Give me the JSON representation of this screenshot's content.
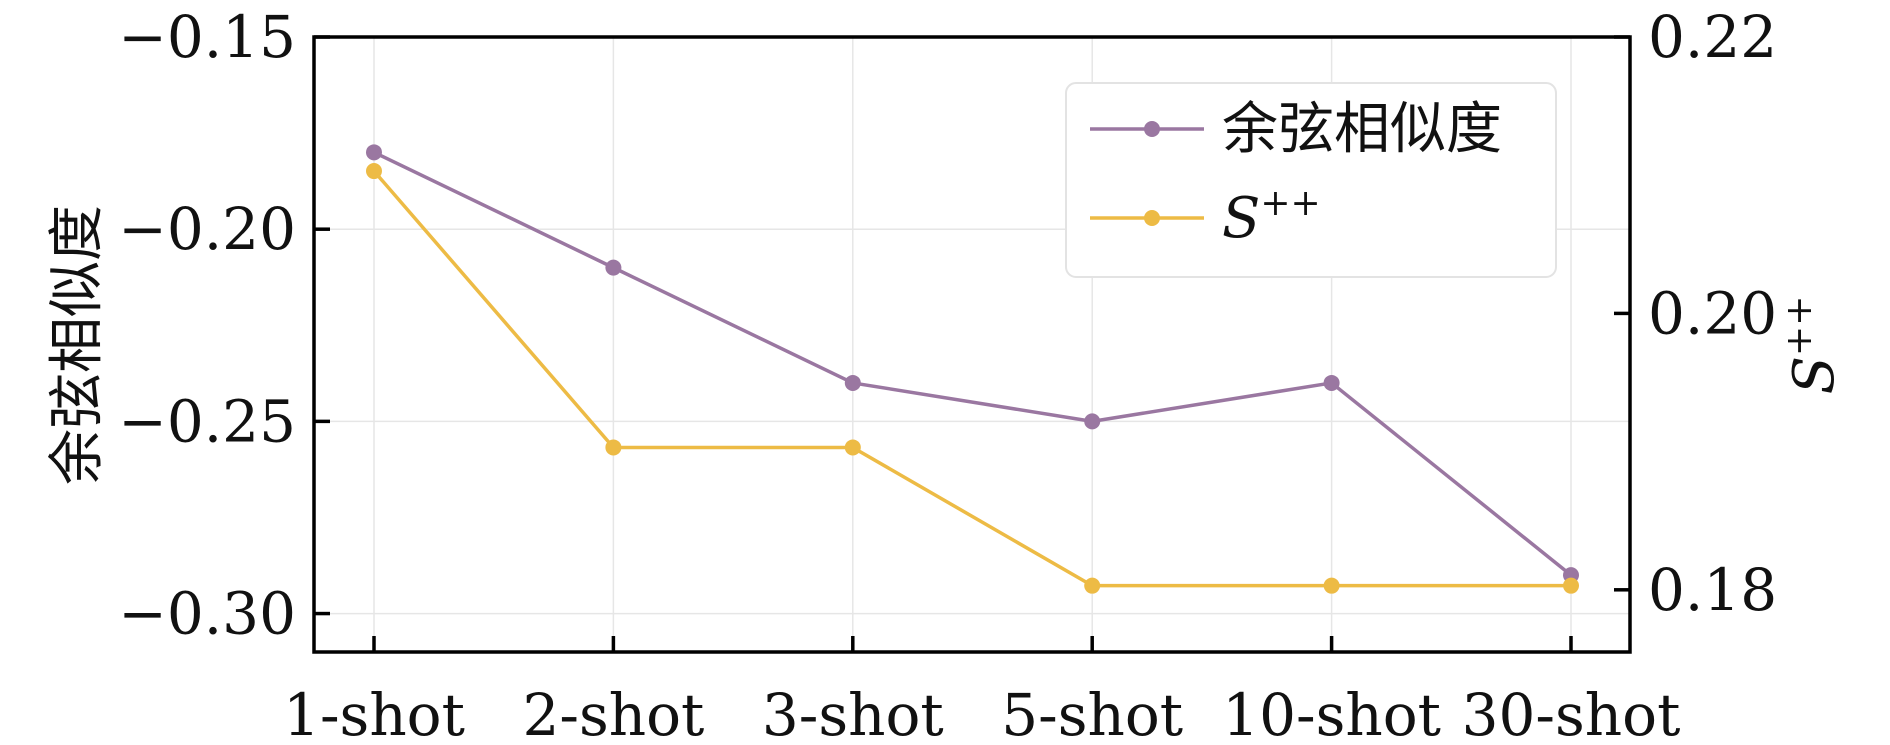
{
  "chart_data": {
    "type": "line",
    "categories": [
      "1-shot",
      "2-shot",
      "3-shot",
      "5-shot",
      "10-shot",
      "30-shot"
    ],
    "series": [
      {
        "name": "余弦相似度",
        "axis": "left",
        "color": "#9a77a1",
        "values": [
          -0.18,
          -0.21,
          -0.24,
          -0.25,
          -0.24,
          -0.29
        ]
      },
      {
        "name": "S++",
        "axis": "right",
        "color": "#edbb45",
        "values": [
          0.2103,
          0.1903,
          0.1903,
          0.1803,
          0.1803,
          0.1803
        ]
      }
    ],
    "y_left": {
      "label": "余弦相似度",
      "ylim": [
        -0.31,
        -0.15
      ],
      "ticks": [
        -0.15,
        -0.2,
        -0.25,
        -0.3
      ],
      "tick_labels": [
        "−0.15",
        "−0.20",
        "−0.25",
        "−0.30"
      ]
    },
    "y_right": {
      "label": "S++",
      "ylim": [
        0.1755,
        0.22
      ],
      "ticks": [
        0.22,
        0.2,
        0.18
      ],
      "tick_labels": [
        "0.22",
        "0.20",
        "0.18"
      ]
    },
    "grid": true,
    "legend_position": "top-right",
    "legend_entries": [
      "余弦相似度",
      "S++"
    ]
  }
}
